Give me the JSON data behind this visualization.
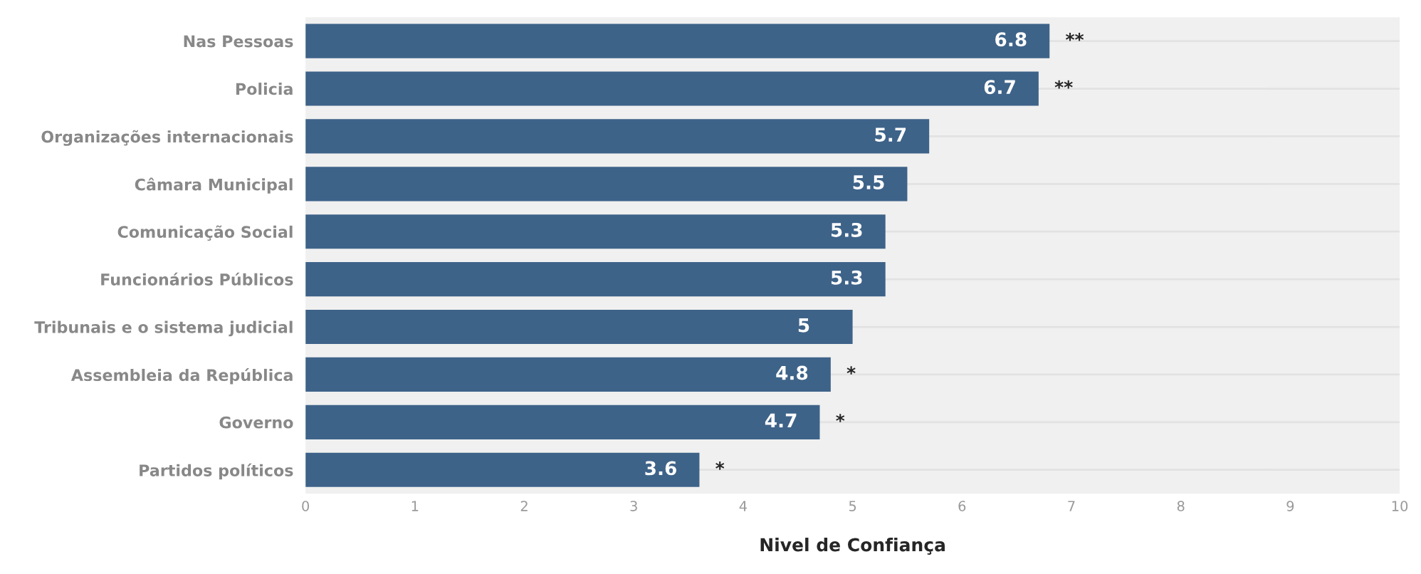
{
  "chart_data": {
    "type": "bar",
    "orientation": "horizontal",
    "xlabel": "Nivel de Confiança",
    "categories": [
      "Nas Pessoas",
      "Policia",
      "Organizações internacionais",
      "Câmara Municipal",
      "Comunicação Social",
      "Funcionários Públicos",
      "Tribunais e o sistema judicial",
      "Assembleia da República",
      "Governo",
      "Partidos políticos"
    ],
    "values": [
      6.8,
      6.7,
      5.7,
      5.5,
      5.3,
      5.3,
      5,
      4.8,
      4.7,
      3.6
    ],
    "color": "#3e6389",
    "data_labels": true,
    "xlim": [
      0,
      10
    ],
    "xticks": [
      0,
      1,
      2,
      3,
      4,
      5,
      6,
      7,
      8,
      9,
      10
    ],
    "grid": "y",
    "annotations": [
      {
        "text": "**",
        "x": 6.8,
        "y": "Nas Pessoas"
      },
      {
        "text": "**",
        "x": 6.7,
        "y": "Policia"
      },
      {
        "text": "*",
        "x": 4.8,
        "y": "Assembleia da República"
      },
      {
        "text": "*",
        "x": 4.7,
        "y": "Governo"
      },
      {
        "text": "*",
        "x": 3.6,
        "y": "Partidos políticos"
      }
    ]
  }
}
